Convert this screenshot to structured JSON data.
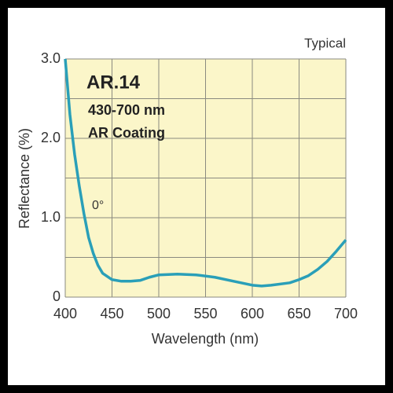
{
  "chart_data": {
    "type": "line",
    "title": "AR.14",
    "subtitle": "430-700 nm",
    "note": "AR Coating",
    "annotation": "0°",
    "corner_label": "Typical",
    "x_label": "Wavelength (nm)",
    "y_label": "Reflectance (%)",
    "series": [
      {
        "name": "0°",
        "color": "#2a9fb8",
        "x": [
          400,
          405,
          410,
          415,
          420,
          425,
          430,
          435,
          440,
          450,
          460,
          470,
          480,
          490,
          500,
          520,
          540,
          560,
          580,
          600,
          610,
          620,
          640,
          650,
          660,
          670,
          680,
          690,
          700
        ],
        "values": [
          3.0,
          2.3,
          1.8,
          1.4,
          1.05,
          0.75,
          0.55,
          0.4,
          0.3,
          0.22,
          0.2,
          0.2,
          0.21,
          0.25,
          0.28,
          0.29,
          0.28,
          0.25,
          0.2,
          0.15,
          0.14,
          0.15,
          0.18,
          0.22,
          0.27,
          0.35,
          0.45,
          0.58,
          0.72
        ]
      }
    ],
    "xlim": [
      400,
      700
    ],
    "xticks": [
      400,
      450,
      500,
      550,
      600,
      650,
      700
    ],
    "ylim": [
      0,
      3
    ],
    "yticks": [
      0,
      {
        "value": 1,
        "label": "1.0"
      },
      {
        "value": 2,
        "label": "2.0"
      },
      {
        "value": 3,
        "label": "3.0"
      }
    ],
    "yminor": [
      0.5,
      1.5,
      2.5
    ],
    "grid": true,
    "background": "#fbf6c9"
  }
}
